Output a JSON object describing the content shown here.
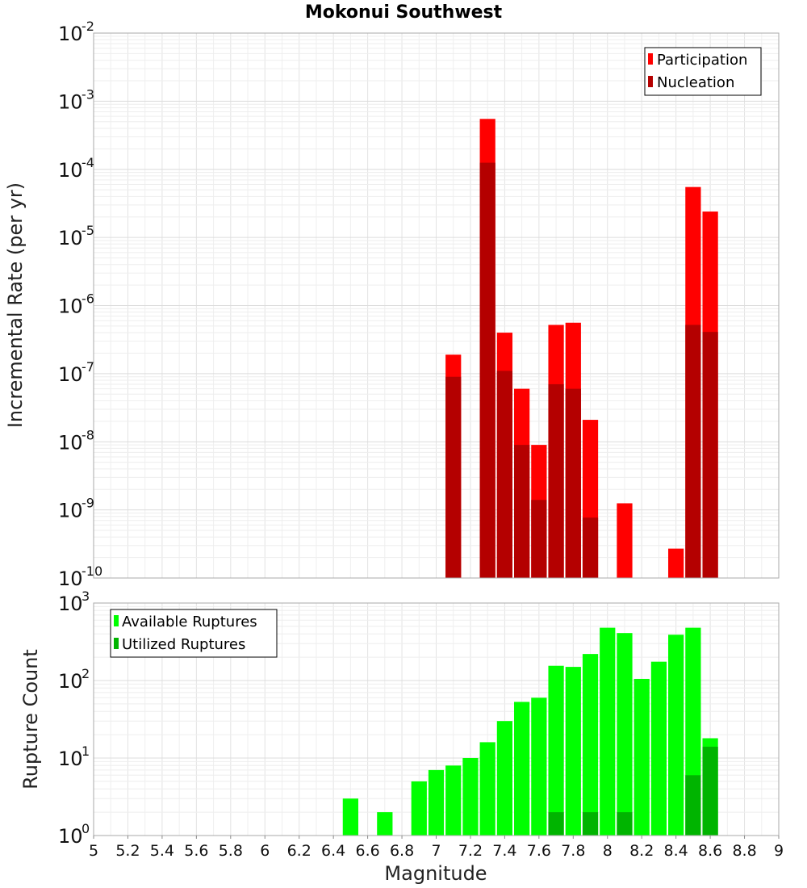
{
  "chart_data": [
    {
      "type": "bar",
      "title": "Mokonui Southwest",
      "ylabel": "Incremental Rate (per yr)",
      "xlabel": "",
      "yscale": "log",
      "xlim": [
        5,
        9
      ],
      "ylim": [
        1e-10,
        0.01
      ],
      "grid": true,
      "legend_position": "top-right",
      "bin_width": 0.1,
      "x": [
        7.1,
        7.3,
        7.4,
        7.5,
        7.6,
        7.7,
        7.8,
        7.9,
        8.1,
        8.4,
        8.5,
        8.6
      ],
      "series": [
        {
          "name": "Participation",
          "color": "#ff0000",
          "values": [
            1.9e-07,
            0.00055,
            4e-07,
            6e-08,
            9e-09,
            5.2e-07,
            5.6e-07,
            2.1e-08,
            1.25e-09,
            2.7e-10,
            5.5e-05,
            2.4e-05
          ]
        },
        {
          "name": "Nucleation",
          "color": "#b40000",
          "values": [
            9e-08,
            0.000125,
            1.1e-07,
            9e-09,
            1.4e-09,
            7e-08,
            6e-08,
            7.7e-10,
            null,
            null,
            5.2e-07,
            4.1e-07
          ]
        }
      ]
    },
    {
      "type": "bar",
      "title": "",
      "ylabel": "Rupture Count",
      "xlabel": "Magnitude",
      "yscale": "log",
      "xlim": [
        5,
        9
      ],
      "ylim": [
        1,
        1000
      ],
      "grid": true,
      "legend_position": "top-left",
      "bin_width": 0.1,
      "x": [
        6.5,
        6.7,
        6.8,
        6.9,
        7.0,
        7.1,
        7.2,
        7.3,
        7.4,
        7.5,
        7.6,
        7.7,
        7.8,
        7.9,
        8.0,
        8.1,
        8.2,
        8.3,
        8.4,
        8.5,
        8.6
      ],
      "series": [
        {
          "name": "Available Ruptures",
          "color": "#00ff00",
          "values": [
            3,
            2,
            1,
            5,
            7,
            8,
            10,
            16,
            30,
            53,
            60,
            155,
            150,
            220,
            480,
            410,
            105,
            175,
            390,
            480,
            18
          ]
        },
        {
          "name": "Utilized Ruptures",
          "color": "#00b400",
          "values": [
            null,
            null,
            null,
            null,
            null,
            1,
            null,
            1,
            1,
            1,
            1,
            2,
            1,
            2,
            1,
            2,
            null,
            null,
            1,
            6,
            14
          ]
        }
      ]
    }
  ],
  "x_ticks": [
    "5",
    "5.2",
    "5.4",
    "5.6",
    "5.8",
    "6",
    "6.2",
    "6.4",
    "6.6",
    "6.8",
    "7",
    "7.2",
    "7.4",
    "7.6",
    "7.8",
    "8",
    "8.2",
    "8.4",
    "8.6",
    "8.8",
    "9"
  ],
  "top_y_ticks": [
    {
      "base": "10",
      "exp": "-2"
    },
    {
      "base": "10",
      "exp": "-3"
    },
    {
      "base": "10",
      "exp": "-4"
    },
    {
      "base": "10",
      "exp": "-5"
    },
    {
      "base": "10",
      "exp": "-6"
    },
    {
      "base": "10",
      "exp": "-7"
    },
    {
      "base": "10",
      "exp": "-8"
    },
    {
      "base": "10",
      "exp": "-9"
    },
    {
      "base": "10",
      "exp": "-10"
    }
  ],
  "bottom_y_ticks": [
    {
      "base": "10",
      "exp": "3"
    },
    {
      "base": "10",
      "exp": "2"
    },
    {
      "base": "10",
      "exp": "1"
    },
    {
      "base": "10",
      "exp": "0"
    }
  ]
}
